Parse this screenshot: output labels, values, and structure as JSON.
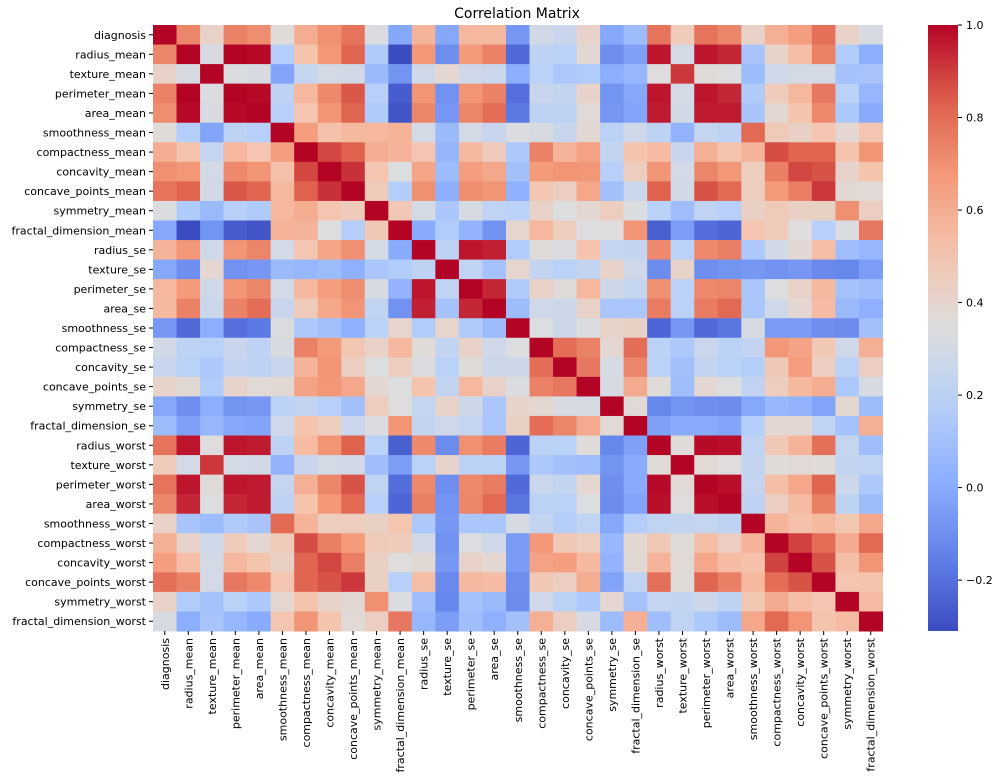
{
  "chart_data": {
    "type": "heatmap",
    "title": "Correlation Matrix",
    "xlabel": "",
    "ylabel": "",
    "colormap": "coolwarm",
    "vmin": -0.31,
    "vmax": 1.0,
    "colorbar_ticks": [
      1.0,
      0.8,
      0.6,
      0.4,
      0.2,
      0.0,
      -0.2
    ],
    "colorbar_tick_labels": [
      "1.0",
      "0.8",
      "0.6",
      "0.4",
      "0.2",
      "0.0",
      "−0.2"
    ],
    "colorbar_placement": "right",
    "grid": false,
    "labels": [
      "diagnosis",
      "radius_mean",
      "texture_mean",
      "perimeter_mean",
      "area_mean",
      "smoothness_mean",
      "compactness_mean",
      "concavity_mean",
      "concave_points_mean",
      "symmetry_mean",
      "fractal_dimension_mean",
      "radius_se",
      "texture_se",
      "perimeter_se",
      "area_se",
      "smoothness_se",
      "compactness_se",
      "concavity_se",
      "concave_points_se",
      "symmetry_se",
      "fractal_dimension_se",
      "radius_worst",
      "texture_worst",
      "perimeter_worst",
      "area_worst",
      "smoothness_worst",
      "compactness_worst",
      "concavity_worst",
      "concave_points_worst",
      "symmetry_worst",
      "fractal_dimension_worst"
    ],
    "matrix": [
      [
        1,
        0.73,
        0.42,
        0.74,
        0.71,
        0.36,
        0.6,
        0.7,
        0.78,
        0.33,
        -0.01,
        0.57,
        -0.01,
        0.56,
        0.55,
        -0.07,
        0.29,
        0.25,
        0.41,
        -0.01,
        0.08,
        0.78,
        0.46,
        0.78,
        0.73,
        0.42,
        0.59,
        0.66,
        0.79,
        0.42,
        0.32
      ],
      [
        0.73,
        1,
        0.32,
        1.0,
        0.99,
        0.17,
        0.51,
        0.68,
        0.82,
        0.15,
        -0.31,
        0.68,
        -0.1,
        0.67,
        0.74,
        -0.22,
        0.21,
        0.19,
        0.38,
        -0.1,
        -0.04,
        0.97,
        0.3,
        0.97,
        0.94,
        0.12,
        0.41,
        0.53,
        0.74,
        0.16,
        0.01
      ],
      [
        0.42,
        0.32,
        1,
        0.33,
        0.32,
        -0.02,
        0.24,
        0.3,
        0.29,
        0.07,
        -0.08,
        0.28,
        0.39,
        0.28,
        0.26,
        0.01,
        0.19,
        0.14,
        0.16,
        0.01,
        0.05,
        0.35,
        0.91,
        0.36,
        0.34,
        0.08,
        0.28,
        0.3,
        0.3,
        0.11,
        0.12
      ],
      [
        0.74,
        1.0,
        0.33,
        1,
        0.99,
        0.21,
        0.56,
        0.72,
        0.85,
        0.18,
        -0.26,
        0.69,
        -0.09,
        0.69,
        0.74,
        -0.2,
        0.25,
        0.23,
        0.41,
        -0.08,
        -0.01,
        0.97,
        0.3,
        0.97,
        0.94,
        0.15,
        0.46,
        0.56,
        0.77,
        0.19,
        0.05
      ],
      [
        0.71,
        0.99,
        0.32,
        0.99,
        1,
        0.18,
        0.5,
        0.69,
        0.82,
        0.15,
        -0.28,
        0.73,
        -0.07,
        0.73,
        0.8,
        -0.17,
        0.21,
        0.21,
        0.37,
        -0.07,
        -0.02,
        0.96,
        0.29,
        0.96,
        0.96,
        0.12,
        0.39,
        0.51,
        0.72,
        0.14,
        0.0
      ],
      [
        0.36,
        0.17,
        -0.02,
        0.21,
        0.18,
        1,
        0.66,
        0.52,
        0.55,
        0.56,
        0.58,
        0.3,
        0.07,
        0.3,
        0.25,
        0.33,
        0.32,
        0.25,
        0.38,
        0.2,
        0.28,
        0.21,
        0.04,
        0.24,
        0.21,
        0.81,
        0.47,
        0.43,
        0.5,
        0.39,
        0.5
      ],
      [
        0.6,
        0.51,
        0.24,
        0.56,
        0.5,
        0.66,
        1,
        0.88,
        0.83,
        0.6,
        0.57,
        0.5,
        0.05,
        0.55,
        0.46,
        0.14,
        0.74,
        0.57,
        0.64,
        0.23,
        0.51,
        0.54,
        0.25,
        0.59,
        0.51,
        0.57,
        0.87,
        0.82,
        0.82,
        0.51,
        0.69
      ],
      [
        0.7,
        0.68,
        0.3,
        0.72,
        0.69,
        0.52,
        0.88,
        1,
        0.92,
        0.5,
        0.34,
        0.63,
        0.08,
        0.66,
        0.62,
        0.1,
        0.67,
        0.69,
        0.68,
        0.18,
        0.45,
        0.69,
        0.3,
        0.73,
        0.68,
        0.45,
        0.75,
        0.88,
        0.86,
        0.41,
        0.51
      ],
      [
        0.78,
        0.82,
        0.29,
        0.85,
        0.82,
        0.55,
        0.83,
        0.92,
        1,
        0.46,
        0.17,
        0.7,
        0.02,
        0.71,
        0.69,
        0.03,
        0.49,
        0.44,
        0.62,
        0.1,
        0.26,
        0.83,
        0.29,
        0.86,
        0.81,
        0.45,
        0.67,
        0.75,
        0.91,
        0.38,
        0.37
      ],
      [
        0.33,
        0.15,
        0.07,
        0.18,
        0.15,
        0.56,
        0.6,
        0.5,
        0.46,
        1,
        0.48,
        0.3,
        0.13,
        0.31,
        0.22,
        0.19,
        0.42,
        0.34,
        0.39,
        0.45,
        0.33,
        0.19,
        0.09,
        0.22,
        0.18,
        0.43,
        0.47,
        0.43,
        0.43,
        0.7,
        0.44
      ],
      [
        -0.01,
        -0.31,
        -0.08,
        -0.26,
        -0.28,
        0.58,
        0.57,
        0.34,
        0.17,
        0.48,
        1,
        0.0,
        0.16,
        0.04,
        -0.09,
        0.4,
        0.56,
        0.45,
        0.34,
        0.35,
        0.69,
        -0.25,
        -0.05,
        -0.21,
        -0.23,
        0.5,
        0.46,
        0.35,
        0.18,
        0.33,
        0.77
      ],
      [
        0.57,
        0.68,
        0.28,
        0.69,
        0.73,
        0.3,
        0.5,
        0.63,
        0.7,
        0.3,
        0.0,
        1,
        0.21,
        0.97,
        0.95,
        0.16,
        0.36,
        0.33,
        0.51,
        0.24,
        0.23,
        0.72,
        0.19,
        0.72,
        0.75,
        0.14,
        0.29,
        0.38,
        0.53,
        0.09,
        0.05
      ],
      [
        -0.01,
        -0.1,
        0.39,
        -0.09,
        -0.07,
        0.07,
        0.05,
        0.08,
        0.02,
        0.13,
        0.16,
        0.21,
        1,
        0.22,
        0.11,
        0.4,
        0.23,
        0.19,
        0.23,
        0.41,
        0.28,
        -0.11,
        0.41,
        -0.1,
        -0.08,
        -0.07,
        -0.09,
        -0.07,
        -0.12,
        -0.13,
        -0.05
      ],
      [
        0.56,
        0.67,
        0.28,
        0.69,
        0.73,
        0.3,
        0.55,
        0.66,
        0.71,
        0.31,
        0.04,
        0.97,
        0.22,
        1,
        0.94,
        0.15,
        0.42,
        0.36,
        0.56,
        0.27,
        0.24,
        0.7,
        0.2,
        0.72,
        0.73,
        0.13,
        0.34,
        0.42,
        0.55,
        0.11,
        0.09
      ],
      [
        0.55,
        0.74,
        0.26,
        0.74,
        0.8,
        0.25,
        0.46,
        0.62,
        0.69,
        0.22,
        -0.09,
        0.95,
        0.11,
        0.94,
        1,
        0.08,
        0.28,
        0.27,
        0.42,
        0.13,
        0.13,
        0.76,
        0.2,
        0.76,
        0.81,
        0.13,
        0.28,
        0.39,
        0.54,
        0.07,
        0.02
      ],
      [
        -0.07,
        -0.22,
        0.01,
        -0.2,
        -0.17,
        0.33,
        0.14,
        0.1,
        0.03,
        0.19,
        0.4,
        0.16,
        0.4,
        0.15,
        0.08,
        1,
        0.34,
        0.27,
        0.33,
        0.41,
        0.43,
        -0.23,
        -0.07,
        -0.22,
        -0.18,
        0.31,
        -0.06,
        -0.06,
        -0.1,
        -0.11,
        0.1
      ],
      [
        0.29,
        0.21,
        0.19,
        0.25,
        0.21,
        0.32,
        0.74,
        0.67,
        0.49,
        0.42,
        0.56,
        0.36,
        0.23,
        0.42,
        0.28,
        0.34,
        1,
        0.8,
        0.74,
        0.39,
        0.8,
        0.2,
        0.14,
        0.26,
        0.2,
        0.23,
        0.68,
        0.64,
        0.48,
        0.28,
        0.59
      ],
      [
        0.25,
        0.19,
        0.14,
        0.23,
        0.21,
        0.25,
        0.57,
        0.69,
        0.44,
        0.34,
        0.45,
        0.33,
        0.19,
        0.36,
        0.27,
        0.27,
        0.8,
        1,
        0.77,
        0.31,
        0.73,
        0.19,
        0.1,
        0.23,
        0.19,
        0.17,
        0.48,
        0.66,
        0.44,
        0.2,
        0.44
      ],
      [
        0.41,
        0.38,
        0.16,
        0.41,
        0.37,
        0.38,
        0.64,
        0.68,
        0.62,
        0.39,
        0.34,
        0.51,
        0.23,
        0.56,
        0.42,
        0.33,
        0.74,
        0.77,
        1,
        0.31,
        0.61,
        0.36,
        0.09,
        0.39,
        0.34,
        0.22,
        0.45,
        0.55,
        0.6,
        0.14,
        0.31
      ],
      [
        -0.01,
        -0.1,
        0.01,
        -0.08,
        -0.07,
        0.2,
        0.23,
        0.18,
        0.1,
        0.45,
        0.35,
        0.24,
        0.41,
        0.27,
        0.13,
        0.41,
        0.39,
        0.31,
        0.31,
        1,
        0.37,
        -0.13,
        -0.08,
        -0.1,
        -0.11,
        -0.01,
        0.06,
        0.04,
        -0.03,
        0.39,
        0.08
      ],
      [
        0.08,
        -0.04,
        0.05,
        -0.01,
        -0.02,
        0.28,
        0.51,
        0.45,
        0.26,
        0.33,
        0.69,
        0.23,
        0.28,
        0.24,
        0.13,
        0.43,
        0.8,
        0.73,
        0.61,
        0.37,
        1,
        -0.04,
        0.0,
        0.0,
        -0.02,
        0.17,
        0.39,
        0.38,
        0.22,
        0.11,
        0.59
      ],
      [
        0.78,
        0.97,
        0.35,
        0.97,
        0.96,
        0.21,
        0.54,
        0.69,
        0.83,
        0.19,
        -0.25,
        0.72,
        -0.11,
        0.7,
        0.76,
        -0.23,
        0.2,
        0.19,
        0.36,
        -0.13,
        -0.04,
        1,
        0.36,
        0.99,
        0.98,
        0.22,
        0.48,
        0.57,
        0.79,
        0.24,
        0.09
      ],
      [
        0.46,
        0.3,
        0.91,
        0.3,
        0.29,
        0.04,
        0.25,
        0.3,
        0.29,
        0.09,
        -0.05,
        0.19,
        0.41,
        0.2,
        0.2,
        -0.07,
        0.14,
        0.1,
        0.09,
        -0.08,
        0.0,
        0.36,
        1,
        0.37,
        0.35,
        0.23,
        0.36,
        0.37,
        0.36,
        0.23,
        0.22
      ],
      [
        0.78,
        0.97,
        0.36,
        0.97,
        0.96,
        0.24,
        0.59,
        0.73,
        0.86,
        0.22,
        -0.21,
        0.72,
        -0.1,
        0.72,
        0.76,
        -0.22,
        0.26,
        0.23,
        0.39,
        -0.1,
        0.0,
        0.99,
        0.37,
        1,
        0.98,
        0.24,
        0.53,
        0.62,
        0.82,
        0.27,
        0.14
      ],
      [
        0.73,
        0.94,
        0.34,
        0.94,
        0.96,
        0.21,
        0.51,
        0.68,
        0.81,
        0.18,
        -0.23,
        0.75,
        -0.08,
        0.73,
        0.81,
        -0.18,
        0.2,
        0.19,
        0.34,
        -0.11,
        -0.02,
        0.98,
        0.35,
        0.98,
        1,
        0.21,
        0.44,
        0.54,
        0.75,
        0.21,
        0.08
      ],
      [
        0.42,
        0.12,
        0.08,
        0.15,
        0.12,
        0.81,
        0.57,
        0.45,
        0.45,
        0.43,
        0.5,
        0.14,
        -0.07,
        0.13,
        0.13,
        0.31,
        0.23,
        0.17,
        0.22,
        -0.01,
        0.17,
        0.22,
        0.23,
        0.24,
        0.21,
        1,
        0.57,
        0.52,
        0.55,
        0.49,
        0.62
      ],
      [
        0.59,
        0.41,
        0.28,
        0.46,
        0.39,
        0.47,
        0.87,
        0.75,
        0.67,
        0.47,
        0.46,
        0.29,
        -0.09,
        0.34,
        0.28,
        -0.06,
        0.68,
        0.48,
        0.45,
        0.06,
        0.39,
        0.48,
        0.36,
        0.53,
        0.44,
        0.57,
        1,
        0.89,
        0.8,
        0.61,
        0.81
      ],
      [
        0.66,
        0.53,
        0.3,
        0.56,
        0.51,
        0.43,
        0.82,
        0.88,
        0.75,
        0.43,
        0.35,
        0.38,
        -0.07,
        0.42,
        0.39,
        -0.06,
        0.64,
        0.66,
        0.55,
        0.04,
        0.38,
        0.57,
        0.37,
        0.62,
        0.54,
        0.52,
        0.89,
        1,
        0.86,
        0.53,
        0.69
      ],
      [
        0.79,
        0.74,
        0.3,
        0.77,
        0.72,
        0.5,
        0.82,
        0.86,
        0.91,
        0.43,
        0.18,
        0.53,
        -0.12,
        0.55,
        0.54,
        -0.1,
        0.48,
        0.44,
        0.6,
        -0.03,
        0.22,
        0.79,
        0.36,
        0.82,
        0.75,
        0.55,
        0.8,
        0.86,
        1,
        0.5,
        0.51
      ],
      [
        0.42,
        0.16,
        0.11,
        0.19,
        0.14,
        0.39,
        0.51,
        0.41,
        0.38,
        0.7,
        0.33,
        0.09,
        -0.13,
        0.11,
        0.07,
        -0.11,
        0.28,
        0.2,
        0.14,
        0.39,
        0.11,
        0.24,
        0.23,
        0.27,
        0.21,
        0.49,
        0.61,
        0.53,
        0.5,
        1,
        0.54
      ],
      [
        0.32,
        0.01,
        0.12,
        0.05,
        0.0,
        0.5,
        0.69,
        0.51,
        0.37,
        0.44,
        0.77,
        0.05,
        -0.05,
        0.09,
        0.02,
        0.1,
        0.59,
        0.44,
        0.31,
        0.08,
        0.59,
        0.09,
        0.22,
        0.14,
        0.08,
        0.62,
        0.81,
        0.69,
        0.51,
        0.54,
        1
      ]
    ]
  }
}
